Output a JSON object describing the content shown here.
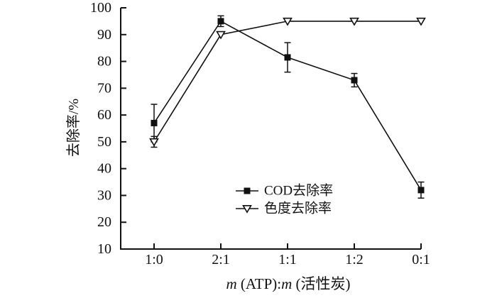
{
  "figure": {
    "background": "#ffffff",
    "ink_color": "#111111"
  },
  "chart_data": {
    "type": "line",
    "categories": [
      "1:0",
      "2:1",
      "1:1",
      "1:2",
      "0:1"
    ],
    "series": [
      {
        "name": "COD去除率",
        "marker": "filled-square",
        "color": "#111111",
        "values": [
          57,
          95,
          81.5,
          73,
          32
        ],
        "error_bars": [
          7,
          2,
          5.5,
          2.5,
          3
        ]
      },
      {
        "name": "色度去除率",
        "marker": "open-inverted-triangle",
        "color": "#111111",
        "values": [
          50,
          90,
          95,
          95,
          95
        ],
        "error_bars": [
          2,
          0,
          0,
          0,
          0
        ]
      }
    ],
    "title": "",
    "xlabel_plain": "m (ATP):m (活性炭)",
    "xlabel_segments": [
      {
        "text": "m",
        "italic": true
      },
      {
        "text": " (ATP):",
        "italic": false
      },
      {
        "text": "m",
        "italic": true
      },
      {
        "text": " (活性炭)",
        "italic": false
      }
    ],
    "ylabel": "去除率/%",
    "ylim": [
      10,
      100
    ],
    "yticks": [
      10,
      20,
      30,
      40,
      50,
      60,
      70,
      80,
      90,
      100
    ],
    "grid": false,
    "legend": {
      "position": "inside-lower-middle",
      "entries": [
        "COD去除率",
        "色度去除率"
      ]
    }
  }
}
